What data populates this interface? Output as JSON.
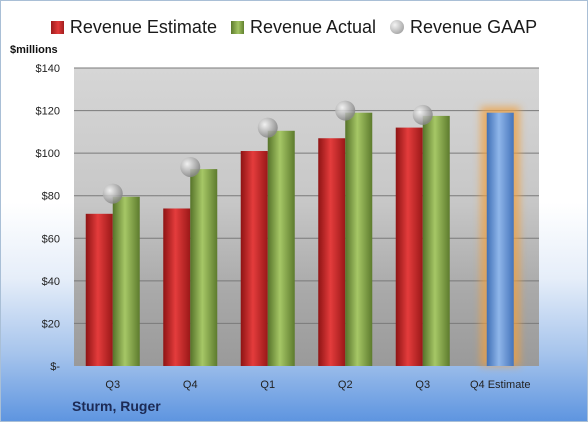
{
  "chart_data": {
    "type": "bar",
    "unit_label": "$millions",
    "categories": [
      "Q3",
      "Q4",
      "Q1",
      "Q2",
      "Q3",
      "Q4 Estimate"
    ],
    "series": [
      {
        "name": "Revenue Estimate",
        "values": [
          71.5,
          74,
          101,
          107,
          112,
          null
        ],
        "color": "#d42a2a"
      },
      {
        "name": "Revenue Actual",
        "values": [
          79.5,
          92.5,
          110.5,
          119,
          117.5,
          null
        ],
        "color": "#8fb04f"
      },
      {
        "name": "Revenue GAAP",
        "values": [
          81,
          93.5,
          112,
          120,
          118,
          null
        ],
        "color": "#b8b8b8"
      },
      {
        "name": "",
        "values": [
          null,
          null,
          null,
          null,
          null,
          119
        ],
        "color": "#6f9bd8"
      }
    ],
    "highlight_color": "#f0a040",
    "ylim": [
      0,
      140
    ],
    "ytick_values": [
      0,
      20,
      40,
      60,
      80,
      100,
      120,
      140
    ],
    "ytick_labels": [
      "$-",
      "$20",
      "$40",
      "$60",
      "$80",
      "$100",
      "$120",
      "$140"
    ],
    "grid": true,
    "legend_position": "top",
    "company": "Sturm, Ruger"
  }
}
